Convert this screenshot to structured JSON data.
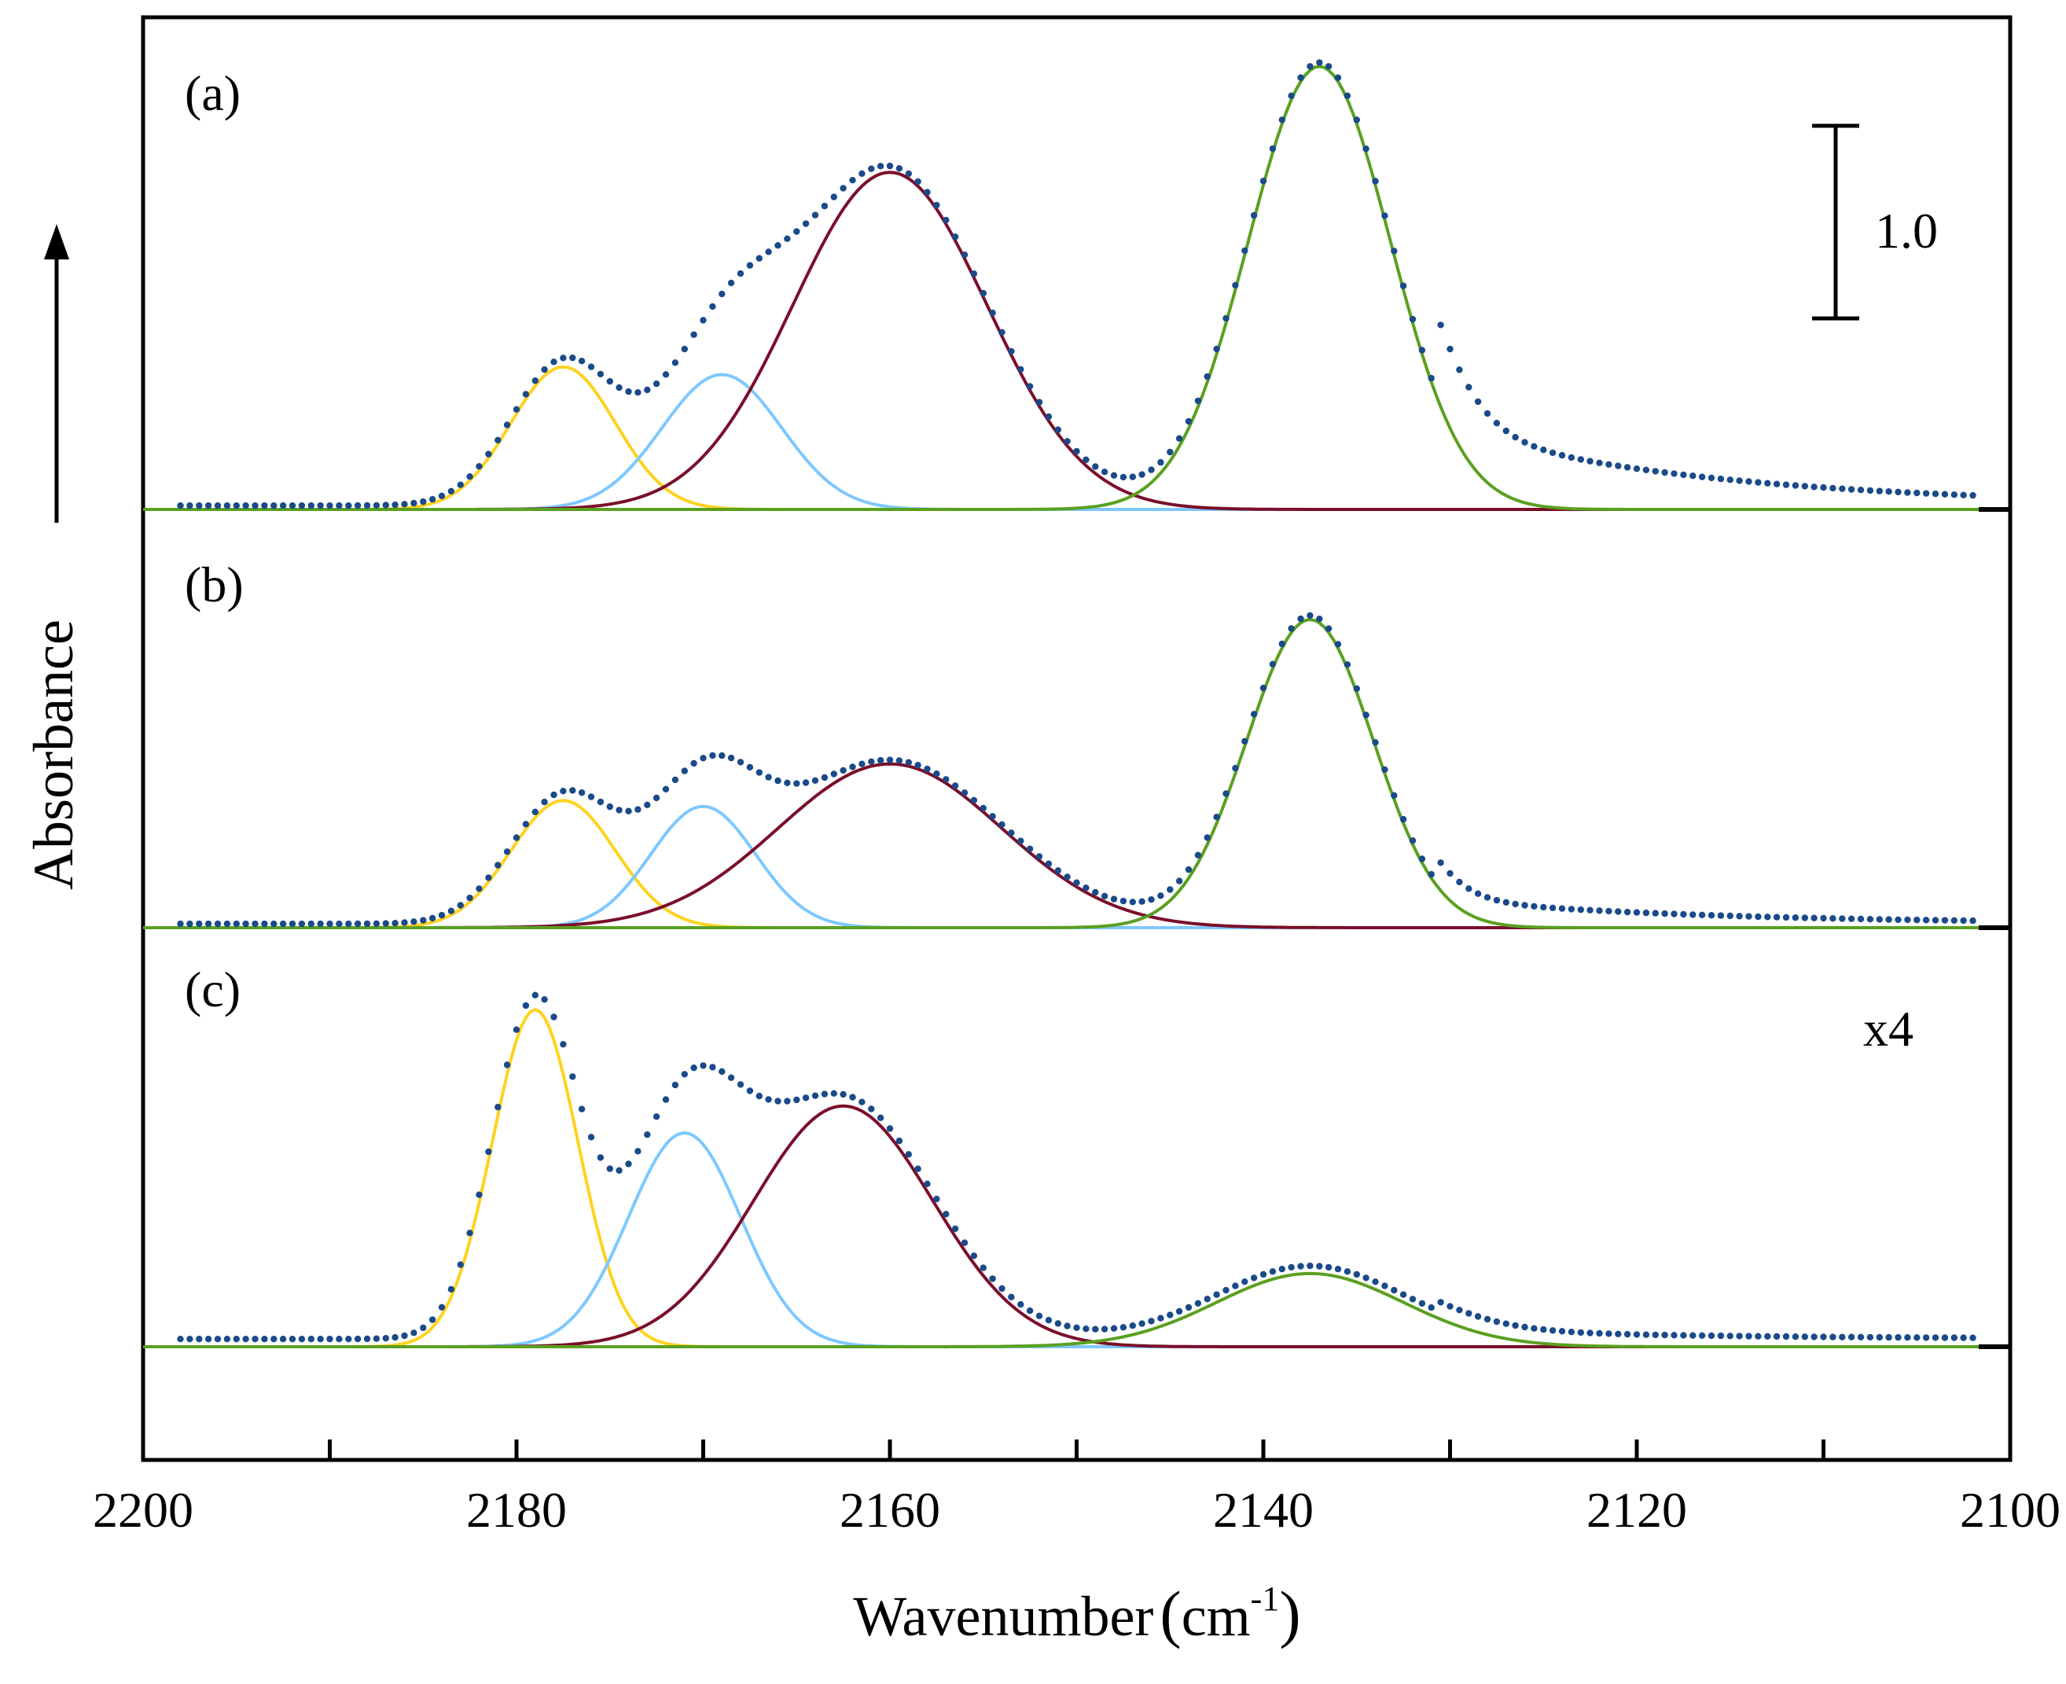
{
  "chart_data": {
    "type": "line",
    "title": "",
    "xlabel": "Wavenumber",
    "xlabel_unit_base": "cm",
    "xlabel_unit_exp": "-1",
    "ylabel": "Absorbance",
    "xlim": [
      2200,
      2100
    ],
    "x_reversed": true,
    "xticks": [
      2200,
      2180,
      2160,
      2140,
      2120,
      2100
    ],
    "x_minor_ticks": [
      2190,
      2170,
      2150,
      2130,
      2110
    ],
    "scale_bar_label": "1.0",
    "scale_bar_value": 1.0,
    "colors": {
      "data": "#1a4a8a",
      "peak_a": "#ffd21f",
      "peak_b": "#7ec8ff",
      "peak_c": "#7a0f2a",
      "peak_d": "#5aa020",
      "axis": "#000000"
    },
    "panels": [
      {
        "label": "(a)",
        "annotation": "",
        "data_range": [
          2198,
          2102
        ],
        "peaks": [
          {
            "name": "peak-a",
            "color": "#ffd21f",
            "center": 2177.5,
            "height": 0.74,
            "sigma": 2.8
          },
          {
            "name": "peak-b",
            "color": "#7ec8ff",
            "center": 2169,
            "height": 0.7,
            "sigma": 3.2
          },
          {
            "name": "peak-c",
            "color": "#7a0f2a",
            "center": 2160,
            "height": 1.75,
            "sigma": 5.2
          },
          {
            "name": "peak-d",
            "color": "#5aa020",
            "center": 2137,
            "height": 2.3,
            "sigma": 3.8
          }
        ],
        "tail": {
          "amp": 0.42,
          "center": 2131,
          "decay": 14
        },
        "data_offset": 0.02
      },
      {
        "label": "(b)",
        "annotation": "",
        "data_range": [
          2198,
          2102
        ],
        "peaks": [
          {
            "name": "peak-a",
            "color": "#ffd21f",
            "center": 2177.5,
            "height": 0.66,
            "sigma": 2.8
          },
          {
            "name": "peak-b",
            "color": "#7ec8ff",
            "center": 2170,
            "height": 0.63,
            "sigma": 2.8
          },
          {
            "name": "peak-c",
            "color": "#7a0f2a",
            "center": 2160,
            "height": 0.85,
            "sigma": 6.0
          },
          {
            "name": "peak-d",
            "color": "#5aa020",
            "center": 2137.5,
            "height": 1.6,
            "sigma": 3.4
          }
        ],
        "tail": {
          "amp": 0.13,
          "center": 2131,
          "decay": 14
        },
        "data_offset": 0.02
      },
      {
        "label": "(c)",
        "annotation": "x4",
        "data_range": [
          2198,
          2102
        ],
        "peaks": [
          {
            "name": "peak-a",
            "color": "#ffd21f",
            "center": 2179,
            "height": 1.75,
            "sigma": 2.3
          },
          {
            "name": "peak-b",
            "color": "#7ec8ff",
            "center": 2171,
            "height": 1.11,
            "sigma": 3.0
          },
          {
            "name": "peak-c",
            "color": "#7a0f2a",
            "center": 2162.5,
            "height": 1.25,
            "sigma": 4.8
          },
          {
            "name": "peak-d",
            "color": "#5aa020",
            "center": 2137.5,
            "height": 0.38,
            "sigma": 5.0
          }
        ],
        "tail": {
          "amp": 0.05,
          "center": 2131,
          "decay": 14
        },
        "data_offset": 0.04
      }
    ]
  }
}
